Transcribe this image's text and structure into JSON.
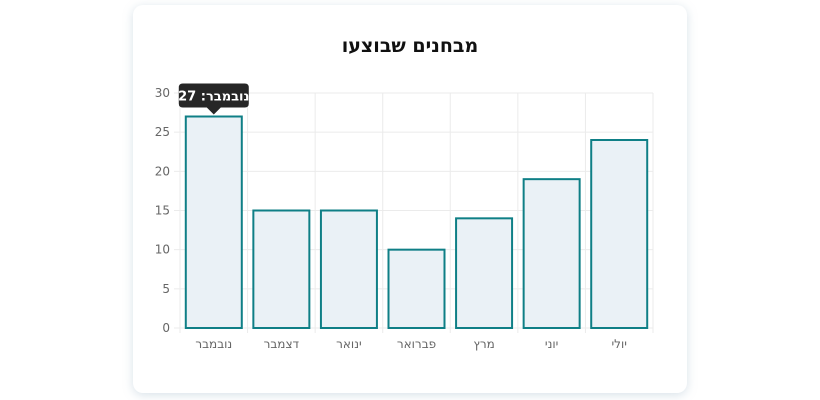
{
  "card": {
    "title": "מבחנים שבוצעו"
  },
  "tooltip": {
    "text": "נובמבר: 27"
  },
  "colors": {
    "bar_fill": "#eaf1f6",
    "bar_stroke": "#0f7f86",
    "grid": "#ebebeb",
    "tick_text": "#666666",
    "tooltip_bg": "#262626",
    "tooltip_text": "#ffffff"
  },
  "chart_data": {
    "type": "bar",
    "title": "מבחנים שבוצעו",
    "categories": [
      "נובמבר",
      "דצמבר",
      "ינואר",
      "פברואר",
      "מרץ",
      "יוני",
      "יולי"
    ],
    "values": [
      27,
      15,
      15,
      10,
      14,
      19,
      24
    ],
    "yticks": [
      0,
      5,
      10,
      15,
      20,
      25,
      30
    ],
    "ylim": [
      0,
      30
    ],
    "xlabel": "",
    "ylabel": "",
    "grid": true,
    "legend": "none"
  }
}
